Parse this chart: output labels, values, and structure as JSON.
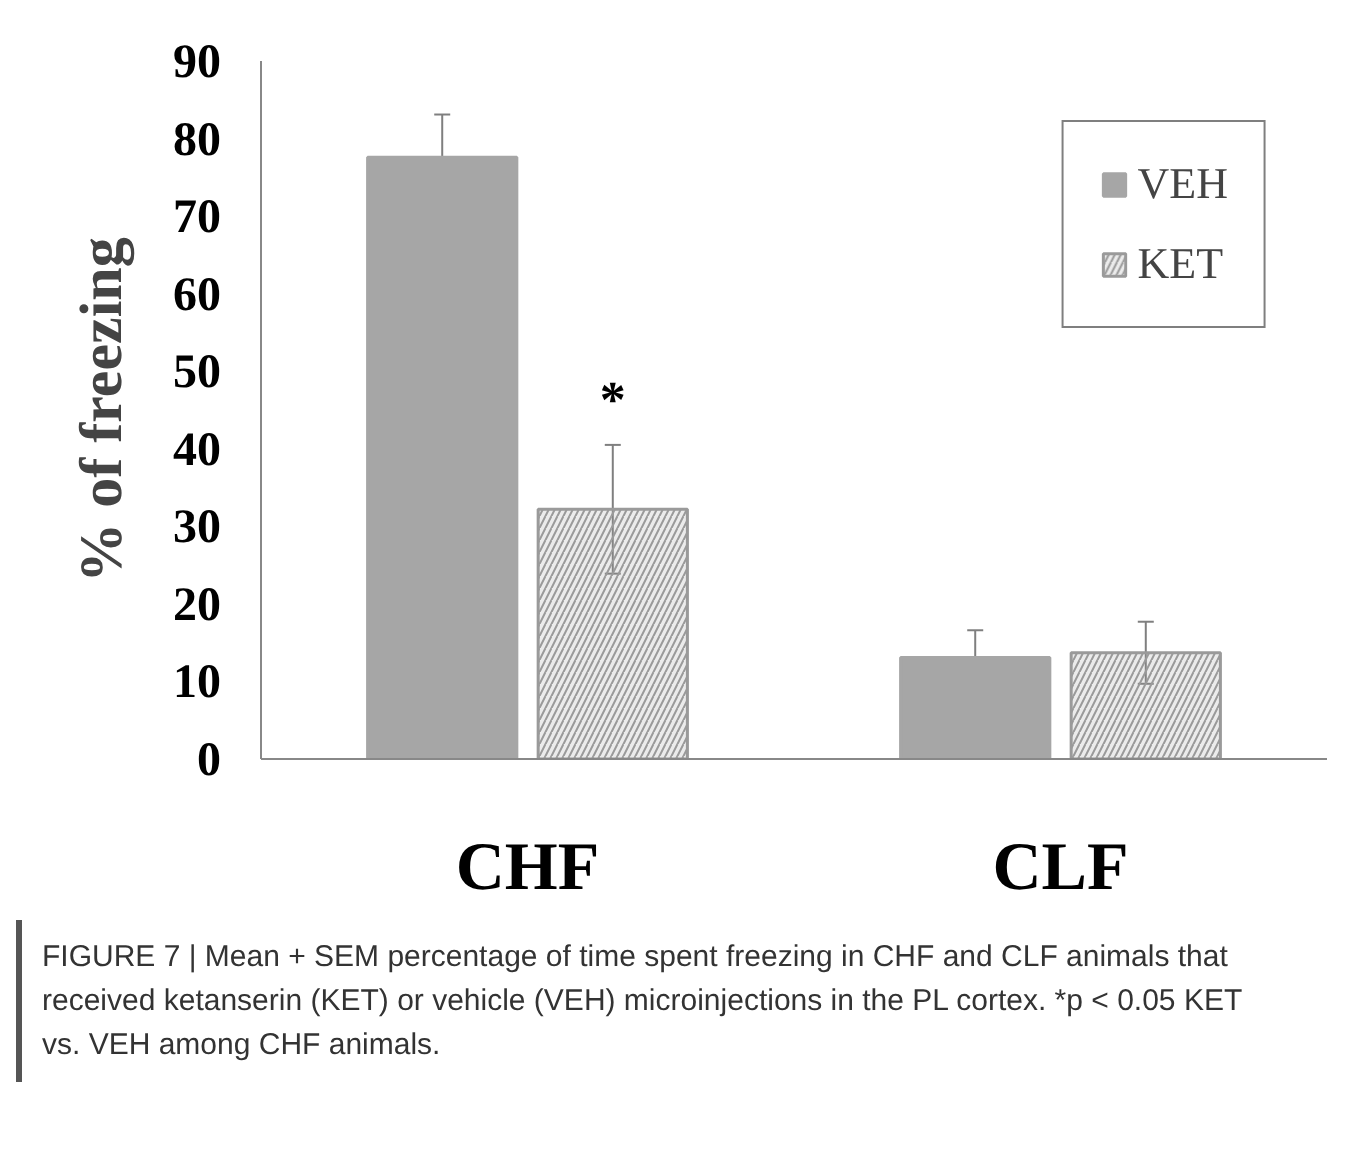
{
  "chart_data": {
    "type": "bar",
    "ylabel": "% of freezing",
    "categories": [
      "CHF",
      "CLF"
    ],
    "series": [
      {
        "name": "VEH",
        "color": "#a6a6a6",
        "values": [
          77.6,
          13.1
        ],
        "errors": [
          5.5,
          3.5
        ]
      },
      {
        "name": "KET",
        "color": "#9a9a9a",
        "values": [
          32.2,
          13.7
        ],
        "errors": [
          8.3,
          4
        ]
      }
    ],
    "ylim": [
      0,
      90
    ],
    "yticks": [
      0,
      10,
      20,
      30,
      40,
      50,
      60,
      70,
      80,
      90
    ],
    "grid": false,
    "legend": "top right",
    "annotations": [
      "*",
      "FIGURE 7 | Mean + SEM percentage of time spent freezing in CHF and CLF animals that received ketanserin (KET) or vehicle (VEH) microinjections in the PL cortex. *p < 0.05 KET vs. VEH among CHF animals."
    ]
  }
}
